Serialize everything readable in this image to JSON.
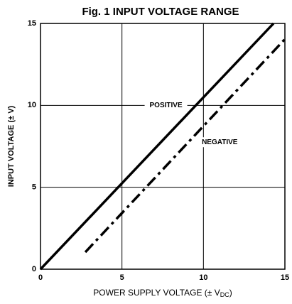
{
  "chart_data": {
    "type": "line",
    "title": "Fig. 1 INPUT VOLTAGE RANGE",
    "y_label": "INPUT VOLTAGE (± V)",
    "x_label": [
      "POWER SUPPLY VOLTAGE (± V",
      "DC",
      ")"
    ],
    "series": [
      {
        "name": "POSITIVE",
        "color": "#000000",
        "style": "solid",
        "x": [
          0,
          14.3
        ],
        "values": [
          0,
          15
        ]
      },
      {
        "name": "NEGATIVE",
        "color": "#000000",
        "style": "dashed",
        "x": [
          2.75,
          15
        ],
        "values": [
          1.04,
          14.04
        ]
      }
    ],
    "annotations": [
      {
        "text": "POSITIVE",
        "x": 7.7,
        "y": 10.0
      },
      {
        "text": "NEGATIVE",
        "x": 11.0,
        "y": 7.75
      }
    ],
    "xlim": [
      0,
      15
    ],
    "ylim": [
      0,
      15
    ],
    "xticks": [
      0,
      5,
      10,
      15
    ],
    "yticks": [
      0,
      5,
      10,
      15
    ],
    "grid": true
  }
}
